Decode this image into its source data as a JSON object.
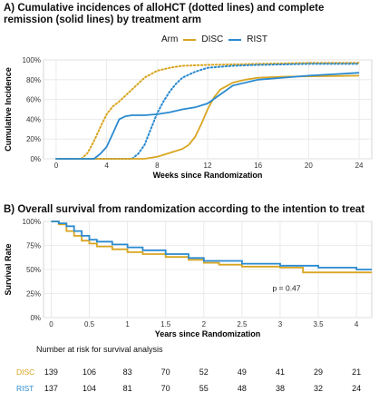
{
  "colors": {
    "DISC": "#d9a520",
    "RIST": "#2a8ad0"
  },
  "chart_data": [
    {
      "type": "line",
      "title": "A) Cumulative incidences of alloHCT (dotted lines) and complete remission (solid lines) by treatment arm",
      "xlabel": "Weeks since Randomization",
      "ylabel": "Cumulative Incidence",
      "xlim": [
        -1,
        25
      ],
      "ylim": [
        0,
        100
      ],
      "xticks": [
        0,
        4,
        8,
        12,
        16,
        20,
        24
      ],
      "yticks": [
        "0%",
        "20%",
        "40%",
        "60%",
        "80%",
        "100%"
      ],
      "grid": true,
      "legend": {
        "position": "top",
        "title": "Arm",
        "entries": [
          "DISC",
          "RIST"
        ]
      },
      "series": [
        {
          "name": "DISC",
          "style": "dotted",
          "x": [
            0,
            2,
            2.5,
            3,
            3.5,
            4,
            4.5,
            5,
            5.5,
            6,
            7,
            8,
            9,
            10,
            12,
            16,
            20,
            24
          ],
          "y": [
            0,
            0,
            6,
            18,
            32,
            45,
            53,
            58,
            64,
            70,
            82,
            89,
            92,
            94,
            95,
            96,
            97,
            97
          ]
        },
        {
          "name": "RIST",
          "style": "dotted",
          "x": [
            0,
            6,
            6.5,
            7,
            7.5,
            8,
            8.5,
            9,
            9.5,
            10,
            11,
            12,
            14,
            16,
            20,
            24
          ],
          "y": [
            0,
            0,
            5,
            14,
            30,
            46,
            58,
            68,
            76,
            82,
            88,
            92,
            94,
            95,
            96,
            96
          ]
        },
        {
          "name": "DISC",
          "style": "solid",
          "x": [
            0,
            7,
            8,
            9,
            10,
            10.5,
            11,
            11.5,
            12,
            12.5,
            13,
            14,
            15,
            16,
            18,
            24
          ],
          "y": [
            0,
            0,
            2,
            6,
            10,
            14,
            22,
            35,
            50,
            62,
            70,
            77,
            80,
            82,
            83,
            84
          ]
        },
        {
          "name": "RIST",
          "style": "solid",
          "x": [
            0,
            3,
            3.5,
            4,
            4.5,
            5,
            5.5,
            6,
            7,
            8,
            9,
            10,
            11,
            12,
            13,
            14,
            16,
            18,
            20,
            24
          ],
          "y": [
            0,
            0,
            5,
            12,
            26,
            40,
            43,
            44,
            44,
            45,
            47,
            50,
            52,
            56,
            65,
            74,
            80,
            82,
            84,
            87
          ]
        }
      ]
    },
    {
      "type": "line",
      "title": "B) Overall survival from randomization according to the intention to treat",
      "xlabel": "Years since Randomization",
      "ylabel": "Survival Rate",
      "xlim": [
        -0.1,
        4.2
      ],
      "ylim": [
        0,
        100
      ],
      "xticks": [
        "0",
        "0.5",
        "1",
        "1.5",
        "2",
        "2.5",
        "3",
        "3.5",
        "4"
      ],
      "yticks": [
        "0%",
        "25%",
        "50%",
        "75%",
        "100%"
      ],
      "grid": true,
      "annotation": "p = 0.47",
      "series": [
        {
          "name": "DISC",
          "step": true,
          "x": [
            0,
            0.1,
            0.2,
            0.3,
            0.4,
            0.5,
            0.6,
            0.8,
            1.0,
            1.2,
            1.5,
            1.8,
            2.0,
            2.2,
            2.5,
            3.0,
            3.3,
            3.5,
            4.2
          ],
          "y": [
            100,
            97,
            90,
            85,
            80,
            77,
            74,
            71,
            68,
            66,
            63,
            60,
            57,
            55,
            53,
            52,
            47,
            47,
            47
          ]
        },
        {
          "name": "RIST",
          "step": true,
          "x": [
            0,
            0.1,
            0.2,
            0.3,
            0.4,
            0.5,
            0.6,
            0.8,
            1.0,
            1.2,
            1.5,
            1.8,
            2.0,
            2.5,
            3.0,
            3.5,
            4.0,
            4.2
          ],
          "y": [
            100,
            98,
            95,
            90,
            85,
            81,
            79,
            76,
            73,
            70,
            66,
            62,
            59,
            56,
            54,
            52,
            50,
            50
          ]
        }
      ]
    }
  ],
  "risk_table": {
    "title": "Number at risk for survival analysis",
    "times": [
      0,
      0.5,
      1,
      1.5,
      2,
      2.5,
      3,
      3.5,
      4
    ],
    "rows": [
      {
        "label": "DISC",
        "values": [
          "139",
          "106",
          "83",
          "70",
          "52",
          "49",
          "41",
          "29",
          "21"
        ]
      },
      {
        "label": "RIST",
        "values": [
          "137",
          "104",
          "81",
          "70",
          "55",
          "48",
          "38",
          "32",
          "24"
        ]
      }
    ]
  }
}
